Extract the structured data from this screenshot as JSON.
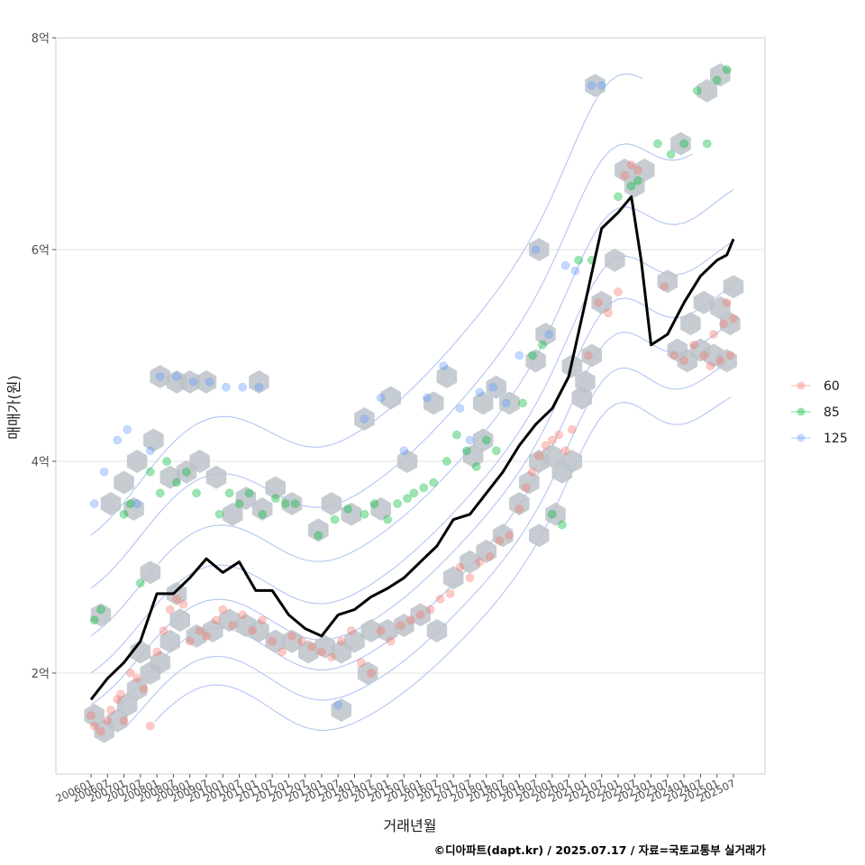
{
  "chart_data": {
    "type": "scatter",
    "xlabel": "거래년월",
    "ylabel": "매매가(원)",
    "x_ticks": [
      "200601",
      "200607",
      "200701",
      "200707",
      "200801",
      "200807",
      "200901",
      "200907",
      "201001",
      "201007",
      "201101",
      "201107",
      "201201",
      "201207",
      "201301",
      "201307",
      "201401",
      "201407",
      "201501",
      "201507",
      "201601",
      "201607",
      "201701",
      "201707",
      "201801",
      "201807",
      "201901",
      "201907",
      "202001",
      "202007",
      "202101",
      "202107",
      "202201",
      "202207",
      "202301",
      "202307",
      "202401",
      "202407",
      "202501",
      "202507"
    ],
    "y_ticks": [
      {
        "value": 2,
        "label": "2억"
      },
      {
        "value": 4,
        "label": "4억"
      },
      {
        "value": 6,
        "label": "6억"
      },
      {
        "value": 8,
        "label": "8억"
      }
    ],
    "ylim": [
      1.1,
      8.0
    ],
    "xlim": [
      2005.6,
      2026.2
    ],
    "ylabel_unit": "억원",
    "legend": [
      {
        "label": "60",
        "color": "#F8766D"
      },
      {
        "label": "85",
        "color": "#00BA38"
      },
      {
        "label": "125",
        "color": "#619CFF"
      }
    ],
    "median_line": {
      "color": "#000000",
      "x": [
        2006.0,
        2006.5,
        2007.0,
        2007.5,
        2008.0,
        2008.5,
        2009.0,
        2009.5,
        2010.0,
        2010.5,
        2011.0,
        2011.5,
        2012.0,
        2012.5,
        2013.0,
        2013.5,
        2014.0,
        2014.5,
        2015.0,
        2015.5,
        2016.0,
        2016.5,
        2017.0,
        2017.5,
        2018.0,
        2018.5,
        2019.0,
        2019.5,
        2020.0,
        2020.5,
        2021.0,
        2021.5,
        2022.0,
        2022.4,
        2022.7,
        2023.0,
        2023.5,
        2024.0,
        2024.5,
        2025.0,
        2025.3,
        2025.5
      ],
      "y": [
        1.75,
        1.95,
        2.1,
        2.3,
        2.75,
        2.75,
        2.9,
        3.08,
        2.95,
        3.05,
        2.78,
        2.78,
        2.55,
        2.42,
        2.35,
        2.55,
        2.6,
        2.72,
        2.8,
        2.9,
        3.05,
        3.2,
        3.45,
        3.5,
        3.7,
        3.9,
        4.15,
        4.35,
        4.5,
        4.8,
        5.5,
        6.2,
        6.35,
        6.5,
        5.9,
        5.1,
        5.2,
        5.5,
        5.75,
        5.9,
        5.95,
        6.1
      ]
    },
    "series": [
      {
        "name": "60",
        "points": [
          [
            2006.0,
            1.6
          ],
          [
            2006.1,
            1.5
          ],
          [
            2006.3,
            1.45
          ],
          [
            2006.5,
            1.55
          ],
          [
            2006.6,
            1.65
          ],
          [
            2006.8,
            1.75
          ],
          [
            2006.9,
            1.8
          ],
          [
            2007.0,
            1.55
          ],
          [
            2007.2,
            2.0
          ],
          [
            2007.4,
            1.95
          ],
          [
            2007.6,
            1.85
          ],
          [
            2007.8,
            1.5
          ],
          [
            2008.0,
            2.2
          ],
          [
            2008.2,
            2.4
          ],
          [
            2008.4,
            2.6
          ],
          [
            2008.6,
            2.7
          ],
          [
            2008.8,
            2.65
          ],
          [
            2009.0,
            2.3
          ],
          [
            2009.3,
            2.4
          ],
          [
            2009.5,
            2.35
          ],
          [
            2009.8,
            2.5
          ],
          [
            2010.0,
            2.6
          ],
          [
            2010.3,
            2.45
          ],
          [
            2010.6,
            2.55
          ],
          [
            2010.9,
            2.4
          ],
          [
            2011.2,
            2.5
          ],
          [
            2011.5,
            2.3
          ],
          [
            2011.8,
            2.2
          ],
          [
            2012.1,
            2.35
          ],
          [
            2012.4,
            2.3
          ],
          [
            2012.7,
            2.25
          ],
          [
            2013.0,
            2.2
          ],
          [
            2013.3,
            2.15
          ],
          [
            2013.6,
            2.3
          ],
          [
            2013.9,
            2.4
          ],
          [
            2014.2,
            2.1
          ],
          [
            2014.5,
            2.0
          ],
          [
            2014.8,
            2.4
          ],
          [
            2015.1,
            2.3
          ],
          [
            2015.4,
            2.45
          ],
          [
            2015.7,
            2.5
          ],
          [
            2016.0,
            2.55
          ],
          [
            2016.3,
            2.6
          ],
          [
            2016.6,
            2.7
          ],
          [
            2016.9,
            2.75
          ],
          [
            2017.2,
            3.0
          ],
          [
            2017.5,
            2.9
          ],
          [
            2017.8,
            3.05
          ],
          [
            2018.1,
            3.1
          ],
          [
            2018.4,
            3.25
          ],
          [
            2018.7,
            3.3
          ],
          [
            2019.0,
            3.55
          ],
          [
            2019.2,
            3.75
          ],
          [
            2019.4,
            3.9
          ],
          [
            2019.6,
            4.05
          ],
          [
            2019.8,
            4.15
          ],
          [
            2020.0,
            4.2
          ],
          [
            2020.2,
            4.25
          ],
          [
            2020.4,
            4.1
          ],
          [
            2020.6,
            4.3
          ],
          [
            2021.1,
            5.0
          ],
          [
            2021.4,
            5.5
          ],
          [
            2021.7,
            5.4
          ],
          [
            2022.0,
            5.6
          ],
          [
            2022.2,
            6.7
          ],
          [
            2022.4,
            6.8
          ],
          [
            2022.6,
            6.75
          ],
          [
            2023.4,
            5.65
          ],
          [
            2023.7,
            5.0
          ],
          [
            2024.0,
            4.95
          ],
          [
            2024.3,
            5.1
          ],
          [
            2024.6,
            5.0
          ],
          [
            2024.9,
            5.2
          ],
          [
            2025.2,
            5.3
          ],
          [
            2025.5,
            5.35
          ],
          [
            2025.4,
            5.0
          ],
          [
            2025.1,
            4.95
          ],
          [
            2024.8,
            4.9
          ],
          [
            2025.3,
            5.5
          ]
        ]
      },
      {
        "name": "85",
        "points": [
          [
            2006.1,
            2.5
          ],
          [
            2006.3,
            2.6
          ],
          [
            2007.0,
            3.5
          ],
          [
            2007.2,
            3.6
          ],
          [
            2007.5,
            2.85
          ],
          [
            2007.8,
            3.9
          ],
          [
            2008.1,
            3.7
          ],
          [
            2008.3,
            4.0
          ],
          [
            2008.6,
            3.8
          ],
          [
            2008.9,
            3.9
          ],
          [
            2009.2,
            3.7
          ],
          [
            2009.9,
            3.5
          ],
          [
            2010.2,
            3.7
          ],
          [
            2010.5,
            3.6
          ],
          [
            2010.8,
            3.7
          ],
          [
            2011.2,
            3.5
          ],
          [
            2011.6,
            3.65
          ],
          [
            2011.9,
            3.6
          ],
          [
            2012.2,
            3.6
          ],
          [
            2012.9,
            3.3
          ],
          [
            2013.4,
            3.45
          ],
          [
            2013.8,
            3.55
          ],
          [
            2014.3,
            3.5
          ],
          [
            2014.6,
            3.6
          ],
          [
            2015.0,
            3.45
          ],
          [
            2015.3,
            3.6
          ],
          [
            2015.6,
            3.65
          ],
          [
            2015.8,
            3.7
          ],
          [
            2016.1,
            3.75
          ],
          [
            2016.4,
            3.8
          ],
          [
            2016.8,
            4.0
          ],
          [
            2017.1,
            4.25
          ],
          [
            2017.4,
            4.1
          ],
          [
            2017.7,
            3.95
          ],
          [
            2018.0,
            4.2
          ],
          [
            2018.3,
            4.1
          ],
          [
            2019.1,
            4.55
          ],
          [
            2019.4,
            5.0
          ],
          [
            2019.7,
            5.1
          ],
          [
            2020.0,
            3.5
          ],
          [
            2020.3,
            3.4
          ],
          [
            2020.8,
            5.9
          ],
          [
            2021.2,
            5.9
          ],
          [
            2022.0,
            6.5
          ],
          [
            2022.4,
            6.6
          ],
          [
            2022.6,
            6.65
          ],
          [
            2023.2,
            7.0
          ],
          [
            2023.6,
            6.9
          ],
          [
            2024.0,
            7.0
          ],
          [
            2024.4,
            7.5
          ],
          [
            2024.7,
            7.0
          ],
          [
            2025.0,
            7.6
          ],
          [
            2025.3,
            7.7
          ]
        ]
      },
      {
        "name": "125",
        "points": [
          [
            2006.1,
            3.6
          ],
          [
            2006.4,
            3.9
          ],
          [
            2006.8,
            4.2
          ],
          [
            2007.1,
            4.3
          ],
          [
            2007.4,
            3.6
          ],
          [
            2007.8,
            4.1
          ],
          [
            2008.1,
            4.8
          ],
          [
            2008.6,
            4.8
          ],
          [
            2009.1,
            4.75
          ],
          [
            2009.6,
            4.75
          ],
          [
            2010.1,
            4.7
          ],
          [
            2010.6,
            4.7
          ],
          [
            2011.1,
            4.7
          ],
          [
            2013.5,
            1.7
          ],
          [
            2014.3,
            4.4
          ],
          [
            2014.8,
            4.6
          ],
          [
            2015.5,
            4.1
          ],
          [
            2016.2,
            4.6
          ],
          [
            2016.7,
            4.9
          ],
          [
            2017.2,
            4.5
          ],
          [
            2017.5,
            4.2
          ],
          [
            2017.8,
            4.65
          ],
          [
            2018.2,
            4.7
          ],
          [
            2018.6,
            4.55
          ],
          [
            2019.0,
            5.0
          ],
          [
            2019.5,
            6.0
          ],
          [
            2019.9,
            5.2
          ],
          [
            2020.4,
            5.85
          ],
          [
            2020.7,
            5.8
          ],
          [
            2021.2,
            7.55
          ],
          [
            2021.5,
            7.55
          ]
        ]
      }
    ],
    "hex_bins": [
      [
        2006.1,
        1.6
      ],
      [
        2006.4,
        1.45
      ],
      [
        2006.8,
        1.55
      ],
      [
        2007.1,
        1.7
      ],
      [
        2007.4,
        1.85
      ],
      [
        2007.8,
        2.0
      ],
      [
        2007.5,
        2.2
      ],
      [
        2008.1,
        2.1
      ],
      [
        2008.4,
        2.3
      ],
      [
        2008.7,
        2.5
      ],
      [
        2009.2,
        2.35
      ],
      [
        2009.7,
        2.4
      ],
      [
        2010.2,
        2.5
      ],
      [
        2010.7,
        2.45
      ],
      [
        2011.1,
        2.4
      ],
      [
        2011.6,
        2.3
      ],
      [
        2012.1,
        2.3
      ],
      [
        2012.6,
        2.2
      ],
      [
        2013.1,
        2.25
      ],
      [
        2013.6,
        2.2
      ],
      [
        2014.0,
        2.3
      ],
      [
        2014.5,
        2.4
      ],
      [
        2015.0,
        2.4
      ],
      [
        2015.5,
        2.45
      ],
      [
        2016.0,
        2.55
      ],
      [
        2016.5,
        2.4
      ],
      [
        2017.0,
        2.9
      ],
      [
        2017.5,
        3.05
      ],
      [
        2018.0,
        3.15
      ],
      [
        2018.5,
        3.3
      ],
      [
        2019.0,
        3.6
      ],
      [
        2019.3,
        3.8
      ],
      [
        2019.6,
        4.0
      ],
      [
        2020.0,
        4.05
      ],
      [
        2020.3,
        3.9
      ],
      [
        2020.6,
        4.0
      ],
      [
        2020.9,
        4.6
      ],
      [
        2021.2,
        5.0
      ],
      [
        2021.5,
        5.5
      ],
      [
        2021.9,
        5.9
      ],
      [
        2022.2,
        6.75
      ],
      [
        2022.5,
        6.6
      ],
      [
        2022.8,
        6.75
      ],
      [
        2023.5,
        5.7
      ],
      [
        2023.8,
        5.05
      ],
      [
        2024.1,
        4.95
      ],
      [
        2024.5,
        5.05
      ],
      [
        2024.9,
        5.0
      ],
      [
        2025.3,
        4.95
      ],
      [
        2025.4,
        5.3
      ],
      [
        2025.5,
        5.65
      ],
      [
        2025.1,
        5.45
      ],
      [
        2024.6,
        5.5
      ],
      [
        2024.2,
        5.3
      ],
      [
        2023.9,
        7.0
      ],
      [
        2024.7,
        7.5
      ],
      [
        2025.1,
        7.65
      ],
      [
        2021.3,
        7.55
      ],
      [
        2019.6,
        6.0
      ],
      [
        2019.8,
        5.2
      ],
      [
        2019.5,
        4.95
      ],
      [
        2018.7,
        4.55
      ],
      [
        2018.3,
        4.7
      ],
      [
        2017.9,
        4.55
      ],
      [
        2017.6,
        4.05
      ],
      [
        2017.9,
        4.2
      ],
      [
        2016.8,
        4.8
      ],
      [
        2016.4,
        4.55
      ],
      [
        2015.6,
        4.0
      ],
      [
        2015.1,
        4.6
      ],
      [
        2014.3,
        4.4
      ],
      [
        2014.8,
        3.55
      ],
      [
        2013.9,
        3.5
      ],
      [
        2013.3,
        3.6
      ],
      [
        2012.9,
        3.35
      ],
      [
        2012.1,
        3.6
      ],
      [
        2011.6,
        3.75
      ],
      [
        2011.2,
        3.55
      ],
      [
        2010.7,
        3.65
      ],
      [
        2010.3,
        3.5
      ],
      [
        2009.8,
        3.85
      ],
      [
        2009.3,
        4.0
      ],
      [
        2009.0,
        4.75
      ],
      [
        2009.5,
        4.75
      ],
      [
        2008.6,
        4.75
      ],
      [
        2008.1,
        4.8
      ],
      [
        2011.1,
        4.75
      ],
      [
        2008.9,
        3.9
      ],
      [
        2008.4,
        3.85
      ],
      [
        2007.9,
        4.2
      ],
      [
        2007.4,
        4.0
      ],
      [
        2007.0,
        3.8
      ],
      [
        2006.6,
        3.6
      ],
      [
        2007.3,
        3.55
      ],
      [
        2006.3,
        2.55
      ],
      [
        2007.8,
        2.95
      ],
      [
        2008.6,
        2.75
      ],
      [
        2013.6,
        1.65
      ],
      [
        2014.4,
        2.0
      ],
      [
        2020.1,
        3.5
      ],
      [
        2019.6,
        3.3
      ],
      [
        2021.0,
        4.75
      ],
      [
        2020.6,
        4.9
      ]
    ]
  },
  "credit": "©디아파트(dapt.kr) / 2025.07.17 / 자료=국토교통부 실거래가"
}
